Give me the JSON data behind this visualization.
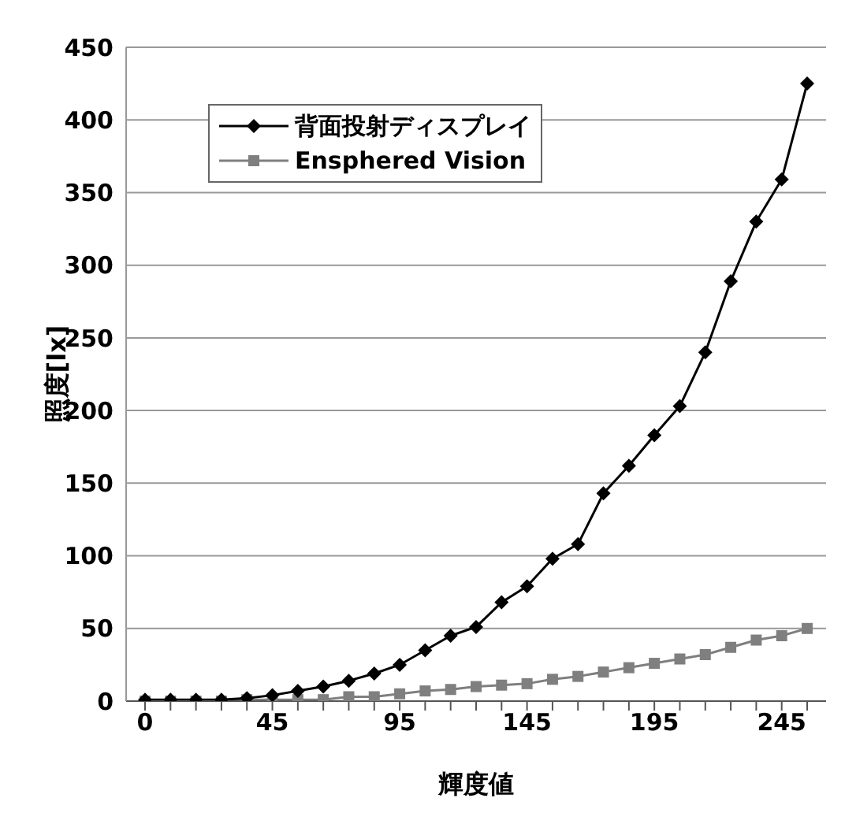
{
  "chart_data": {
    "type": "line",
    "xlabel": "輝度値",
    "ylabel": "照度[lx]",
    "categories": [
      "0",
      null,
      null,
      null,
      null,
      "45",
      null,
      null,
      null,
      null,
      "95",
      null,
      null,
      null,
      null,
      "145",
      null,
      null,
      null,
      null,
      "195",
      null,
      null,
      null,
      null,
      "245",
      null
    ],
    "series": [
      {
        "name": "背面投射ディスプレイ",
        "color": "#000000",
        "marker": "diamond",
        "values": [
          1,
          1,
          1,
          1,
          2,
          4,
          7,
          10,
          14,
          19,
          25,
          35,
          45,
          51,
          68,
          79,
          98,
          108,
          143,
          162,
          183,
          203,
          240,
          289,
          330,
          359,
          425
        ]
      },
      {
        "name": "Ensphered Vision",
        "color": "#7f7f7f",
        "marker": "square",
        "values": [
          0,
          0,
          0,
          0,
          1,
          1,
          1,
          1,
          3,
          3,
          5,
          7,
          8,
          10,
          11,
          12,
          15,
          17,
          20,
          23,
          26,
          29,
          32,
          37,
          42,
          45,
          50
        ]
      }
    ],
    "ylim": [
      0,
      450
    ],
    "yticks": [
      0,
      50,
      100,
      150,
      200,
      250,
      300,
      350,
      400,
      450
    ],
    "grid": "y",
    "legend": "top left"
  }
}
